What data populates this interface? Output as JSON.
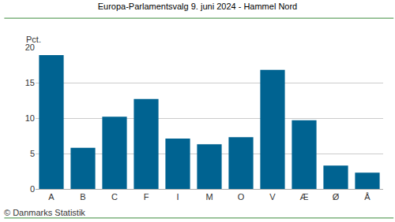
{
  "chart_data": {
    "type": "bar",
    "title": "Europa-Parlamentsvalg 9. juni 2024 - Hammel Nord",
    "ylabel": "Pct.",
    "annotations": [
      "© Danmarks Statistik"
    ],
    "categories": [
      "A",
      "B",
      "C",
      "F",
      "I",
      "M",
      "O",
      "V",
      "Æ",
      "Ø",
      "Å"
    ],
    "values": [
      18.9,
      5.8,
      10.2,
      12.7,
      7.1,
      6.3,
      7.3,
      16.8,
      9.7,
      3.3,
      2.3
    ],
    "color": "#006391",
    "ylim": [
      0,
      20
    ],
    "yticks": [
      0,
      5,
      10,
      15,
      20
    ],
    "grid": true
  }
}
